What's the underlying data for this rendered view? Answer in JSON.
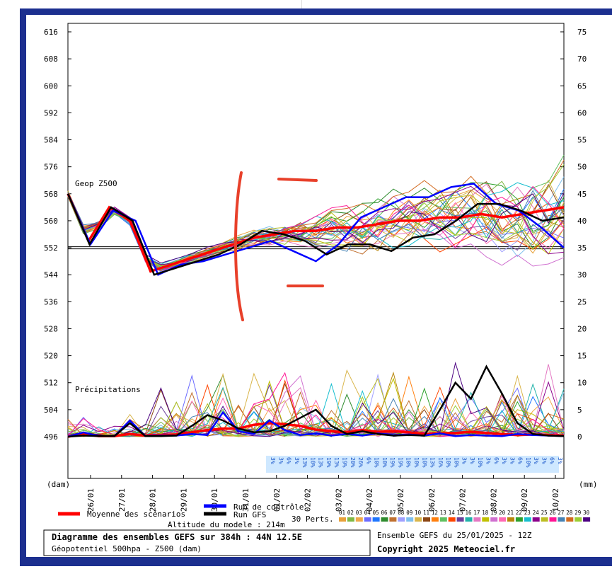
{
  "chart_data": {
    "type": "line",
    "title": "Diagramme des ensembles GEFS sur 384h : 44N 12.5E",
    "subtitle": "Géopotentiel 500hpa - Z500 (dam)",
    "run_info": "Ensemble GEFS du 25/01/2025 - 12Z",
    "copyright": "Copyright 2025 Meteociel.fr",
    "altitude": "Altitude du modele : 214m",
    "xlabel": "(dam)",
    "ylabel_right": "(mm)",
    "panel_label_z500": "Geop Z500",
    "panel_label_precip": "Précipitations",
    "categories": [
      "26/01",
      "27/01",
      "28/01",
      "29/01",
      "30/01",
      "31/01",
      "01/02",
      "02/02",
      "03/02",
      "04/02",
      "05/02",
      "06/02",
      "07/02",
      "08/02",
      "09/02",
      "10/02"
    ],
    "yticks_left": [
      616,
      608,
      600,
      592,
      584,
      576,
      568,
      560,
      552,
      544,
      536,
      528,
      520,
      512,
      504,
      496
    ],
    "yticks_right": [
      75,
      70,
      65,
      60,
      55,
      50,
      45,
      40,
      35,
      30,
      25,
      20,
      15,
      10,
      5,
      0
    ],
    "ylim_left": [
      496,
      616
    ],
    "ylim_right": [
      0,
      75
    ],
    "reference_line_dam": 552,
    "percent_strip": [
      "3%",
      "3%",
      "6%",
      "3%",
      "13%",
      "10%",
      "13%",
      "19%",
      "13%",
      "19%",
      "20%",
      "26%",
      "6%",
      "10%",
      "10%",
      "19%",
      "19%",
      "10%",
      "10%",
      "10%",
      "13%",
      "16%",
      "10%",
      "10%",
      "3%",
      "3%",
      "10%",
      "3%",
      "6%",
      "3%",
      "3%",
      "6%",
      "10%",
      "3%",
      "3%",
      "6%",
      "3%"
    ],
    "legend": {
      "mean_label": "Moyenne des scénarios",
      "control_label": "Run de contrôle",
      "gfs_label": "Run GFS",
      "perts_label": "30 Perts.",
      "pert_numbers": [
        "01",
        "02",
        "03",
        "04",
        "05",
        "06",
        "07",
        "08",
        "09",
        "10",
        "11",
        "12",
        "13",
        "14",
        "15",
        "16",
        "17",
        "18",
        "19",
        "20",
        "21",
        "22",
        "23",
        "24",
        "25",
        "26",
        "27",
        "28",
        "29",
        "30"
      ],
      "pert_colors": [
        "#e8a13a",
        "#7fb843",
        "#f0a84a",
        "#6b6bff",
        "#1f77ff",
        "#2e8b2e",
        "#c07030",
        "#a0a0ff",
        "#7ec0ee",
        "#d9b54a",
        "#8b4513",
        "#ff7f0e",
        "#60c060",
        "#ff4500",
        "#6a3d9a",
        "#20b2aa",
        "#e377c2",
        "#c0c000",
        "#d070d0",
        "#ff69b4",
        "#b8860b",
        "#2ca02c",
        "#17becf",
        "#8b008b",
        "#bcbd22",
        "#ff1493",
        "#4682b4",
        "#d2691e",
        "#9acd32",
        "#4b0082"
      ]
    },
    "series": [
      {
        "name": "Moyenne des scénarios",
        "color": "#ff0000",
        "z500": [
          568,
          554,
          564,
          560,
          545,
          547,
          549,
          551,
          553,
          555,
          556,
          557,
          557,
          558,
          558,
          559,
          560,
          560,
          561,
          561,
          562,
          561,
          562,
          563,
          564
        ],
        "precip": [
          0,
          0.5,
          0.1,
          0.1,
          0.5,
          0.2,
          0.3,
          0.4,
          0.8,
          1.2,
          1.5,
          1.5,
          2.2,
          2.5,
          2.3,
          2.0,
          1.3,
          1.0,
          0.8,
          1.2,
          0.9,
          1.0,
          0.8,
          0.5,
          0.6,
          0.7,
          0.9,
          0.7,
          0.5,
          0.3,
          0.4,
          0.3,
          0.2
        ]
      },
      {
        "name": "Run de contrôle",
        "color": "#0000ff",
        "z500": [
          568,
          553,
          563,
          560,
          544,
          547,
          548,
          550,
          552,
          554,
          551,
          548,
          553,
          561,
          564,
          567,
          567,
          570,
          571,
          565,
          563,
          558,
          552
        ],
        "precip": [
          0,
          0.8,
          0.1,
          0.1,
          3.0,
          0.1,
          0.2,
          0.2,
          0.5,
          0.3,
          4.5,
          1.0,
          0.5,
          3.0,
          1.2,
          0.3,
          0.6,
          0.2,
          0.5,
          0.2,
          0.6,
          0.3,
          0.4,
          0.2,
          0.6,
          0.1,
          0.3,
          0.2,
          0.1,
          0.5,
          0.3,
          0.2,
          0.1
        ]
      },
      {
        "name": "Run GFS",
        "color": "#000000",
        "z500": [
          568,
          553,
          564,
          560,
          544,
          546,
          548,
          550,
          553,
          557,
          556,
          554,
          550,
          553,
          553,
          551,
          555,
          556,
          560,
          565,
          565,
          563,
          560,
          561
        ],
        "precip": [
          0,
          0.2,
          0.1,
          0.1,
          2.5,
          0.1,
          0.1,
          0.2,
          2.0,
          4.0,
          3.0,
          1.5,
          0.8,
          1.0,
          2.0,
          3.5,
          5.0,
          2.0,
          0.5,
          1.0,
          0.5,
          0.2,
          0.3,
          0.2,
          5.0,
          10.0,
          7.0,
          13.0,
          8.0,
          2.5,
          0.5,
          0.2,
          0.1
        ]
      }
    ]
  }
}
